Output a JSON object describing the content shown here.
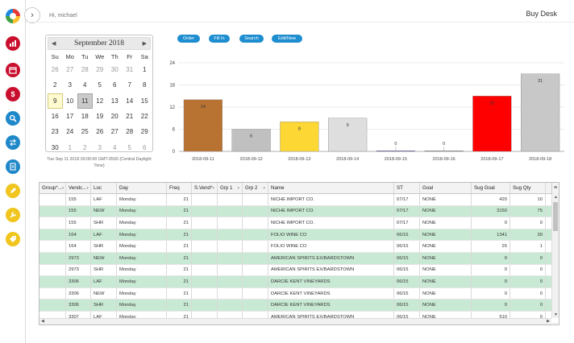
{
  "header": {
    "greeting": "Hi, michael",
    "app_title": "Buy Desk",
    "toggle_glyph": "›"
  },
  "rail": {
    "icons": [
      {
        "name": "bar-chart-icon",
        "color": "#c8102e"
      },
      {
        "name": "calendar-icon",
        "color": "#c8102e"
      },
      {
        "name": "dollar-icon",
        "color": "#c8102e",
        "glyph": "$"
      },
      {
        "name": "search-icon",
        "color": "#1f88c9"
      },
      {
        "name": "transfer-icon",
        "color": "#1f88c9"
      },
      {
        "name": "document-icon",
        "color": "#1f88c9"
      },
      {
        "name": "pencil-icon",
        "color": "#f0c51e"
      },
      {
        "name": "wrench-icon",
        "color": "#f0c51e"
      },
      {
        "name": "tag-icon",
        "color": "#f0c51e"
      }
    ]
  },
  "calendar": {
    "title": "September 2018",
    "prev": "◀",
    "next": "▶",
    "weekdays": [
      "Su",
      "Mo",
      "Tu",
      "We",
      "Th",
      "Fr",
      "Sa"
    ],
    "weeks": [
      [
        "26",
        "27",
        "28",
        "29",
        "30",
        "31",
        "1"
      ],
      [
        "2",
        "3",
        "4",
        "5",
        "6",
        "7",
        "8"
      ],
      [
        "9",
        "10",
        "11",
        "12",
        "13",
        "14",
        "15"
      ],
      [
        "16",
        "17",
        "18",
        "19",
        "20",
        "21",
        "22"
      ],
      [
        "23",
        "24",
        "25",
        "26",
        "27",
        "28",
        "29"
      ],
      [
        "30",
        "1",
        "2",
        "3",
        "4",
        "5",
        "6"
      ]
    ],
    "today": "9",
    "selected": "11",
    "footer": "Tue Sep 11 2018 00:00:00 GMT-0500 (Central Daylight Time)"
  },
  "actions": [
    "Order",
    "Fill In",
    "Search",
    "Edit/New"
  ],
  "chart_data": {
    "type": "bar",
    "categories": [
      "2018-09-11",
      "2018-09-12",
      "2018-09-13",
      "2018-09-14",
      "2018-09-15",
      "2018-09-16",
      "2018-09-17",
      "2018-09-18"
    ],
    "values": [
      14,
      6,
      8,
      9,
      0,
      0,
      15,
      21
    ],
    "colors": [
      "#b87333",
      "#c0c0c0",
      "#fdd835",
      "#dedede",
      "#3f3fbf",
      "#8a8a8a",
      "#ff0000",
      "#c8c8c8"
    ],
    "ylim": [
      0,
      24
    ],
    "yticks": [
      "0",
      "6",
      "12",
      "18",
      "24"
    ],
    "grid": true
  },
  "table": {
    "columns": [
      "Group*...",
      "Vendc...",
      "Loc",
      "Day",
      "Freq",
      "S.Vend*",
      "Grp 1",
      "Grp 2",
      "Name",
      "ST",
      "Goal",
      "Sug Goal",
      "Sug Qty"
    ],
    "menu_glyph": "≡",
    "rows": [
      [
        "",
        "155",
        "LAF",
        "Monday",
        "21",
        "",
        "",
        "",
        "NICHE IMPORT CO.",
        "07/17",
        "NONE",
        "420",
        "10"
      ],
      [
        "",
        "155",
        "NEW",
        "Monday",
        "21",
        "",
        "",
        "",
        "NICHE IMPORT CO.",
        "07/17",
        "NONE",
        "3150",
        "75"
      ],
      [
        "",
        "155",
        "SHR",
        "Monday",
        "21",
        "",
        "",
        "",
        "NICHE IMPORT CO.",
        "07/17",
        "NONE",
        "0",
        "0"
      ],
      [
        "",
        "164",
        "LAF",
        "Monday",
        "21",
        "",
        "",
        "",
        "FOLIO WINE CO",
        "06/15",
        "NONE",
        "1341",
        "39"
      ],
      [
        "",
        "164",
        "SHR",
        "Monday",
        "21",
        "",
        "",
        "",
        "FOLIO WINE CO",
        "06/15",
        "NONE",
        "25",
        "1"
      ],
      [
        "",
        "2973",
        "NEW",
        "Monday",
        "21",
        "",
        "",
        "",
        "AMERICAN SPIRITS EX/BARDSTOWN",
        "06/15",
        "NONE",
        "0",
        "0"
      ],
      [
        "",
        "2973",
        "SHR",
        "Monday",
        "21",
        "",
        "",
        "",
        "AMERICAN SPIRITS EX/BARDSTOWN",
        "06/15",
        "NONE",
        "0",
        "0"
      ],
      [
        "",
        "3306",
        "LAF",
        "Monday",
        "21",
        "",
        "",
        "",
        "DARCIE KENT VINEYARDS",
        "06/15",
        "NONE",
        "0",
        "0"
      ],
      [
        "",
        "3306",
        "NEW",
        "Monday",
        "21",
        "",
        "",
        "",
        "DARCIE KENT VINEYARDS",
        "06/15",
        "NONE",
        "0",
        "0"
      ],
      [
        "",
        "3306",
        "SHR",
        "Monday",
        "21",
        "",
        "",
        "",
        "DARCIE KENT VINEYARDS",
        "06/15",
        "NONE",
        "0",
        "0"
      ],
      [
        "",
        "3307",
        "LAF",
        "Monday",
        "21",
        "",
        "",
        "",
        "AMERICAN SPIRITS EX/BARDSTOWN",
        "06/15",
        "NONE",
        "510",
        "0"
      ]
    ]
  }
}
